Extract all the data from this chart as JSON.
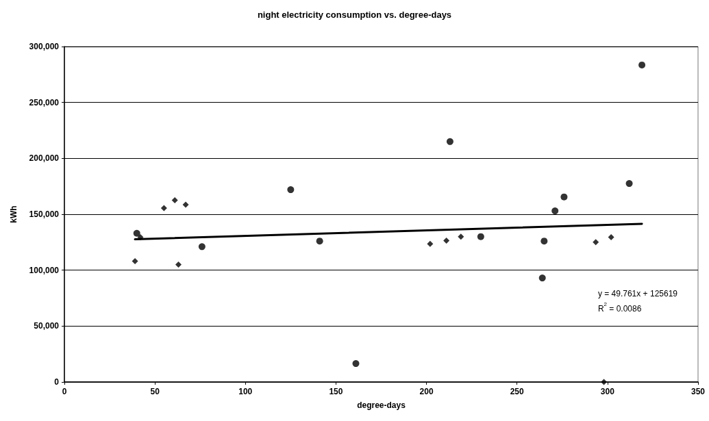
{
  "chart_data": {
    "type": "scatter",
    "title": "night electricity consumption vs. degree-days",
    "xlabel": "degree-days",
    "ylabel": "kWh",
    "xlim": [
      0,
      350
    ],
    "xticks": [
      0,
      50,
      100,
      150,
      200,
      250,
      300,
      350
    ],
    "ylim": [
      0,
      300000
    ],
    "yticks": [
      {
        "value": 0,
        "label": "0"
      },
      {
        "value": 50000,
        "label": "50,000"
      },
      {
        "value": 100000,
        "label": "100,000"
      },
      {
        "value": 150000,
        "label": "150,000"
      },
      {
        "value": 200000,
        "label": "200,000"
      },
      {
        "value": 250000,
        "label": "250,000"
      },
      {
        "value": 300000,
        "label": "300,000"
      }
    ],
    "grid": "y",
    "series": [
      {
        "type": "scatter",
        "marker": "circle",
        "color": "#000000",
        "x": [
          40,
          76,
          125,
          141,
          161,
          213,
          230,
          264,
          265,
          271,
          276,
          312,
          319
        ],
        "values": [
          133000,
          121000,
          172000,
          126000,
          16500,
          215000,
          130000,
          93000,
          126000,
          153000,
          165500,
          177500,
          283500
        ]
      },
      {
        "type": "scatter",
        "marker": "diamond",
        "color": "#000000",
        "x": [
          39,
          42,
          55,
          61,
          63,
          67,
          202,
          211,
          219,
          293.5,
          298,
          302
        ],
        "values": [
          108000,
          129500,
          155500,
          162500,
          105000,
          158500,
          123500,
          126500,
          130000,
          125000,
          0,
          129500
        ]
      },
      {
        "type": "line",
        "marker": "none",
        "line_style": "solid",
        "color": "#000000",
        "x": [
          39,
          319
        ],
        "values": [
          127600,
          141500
        ]
      }
    ],
    "annotations": [
      "y = 49.761x + 125619",
      "R$^{2}$ = 0.0086"
    ]
  }
}
